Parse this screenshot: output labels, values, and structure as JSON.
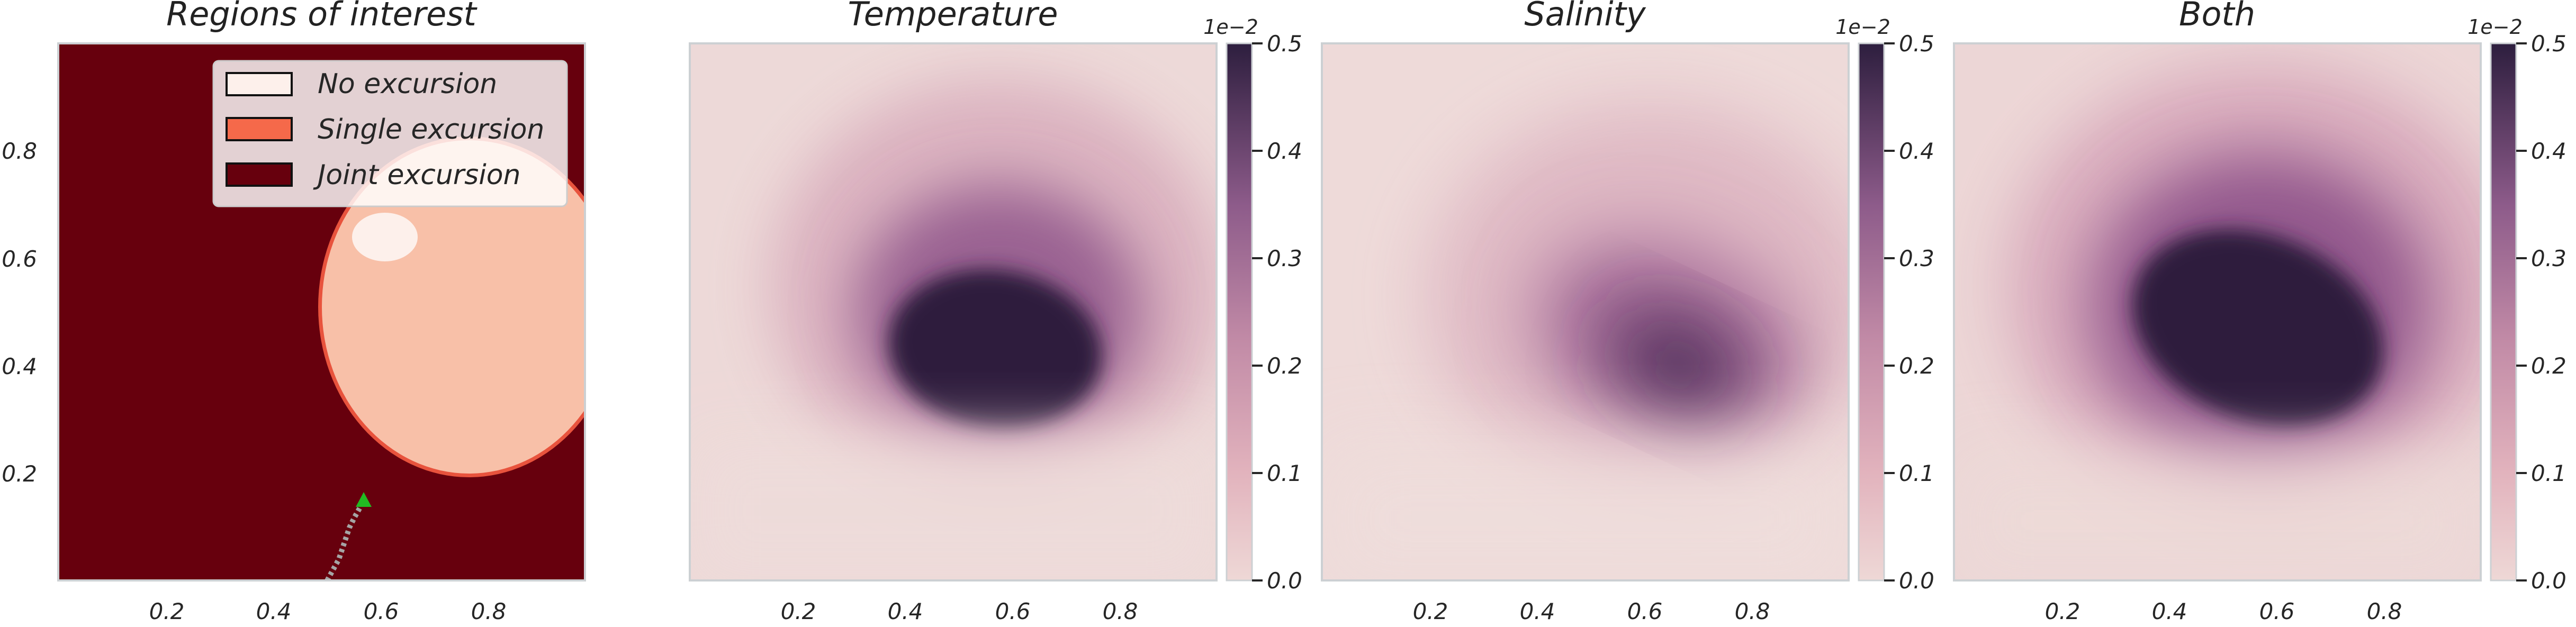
{
  "chart_data": [
    {
      "type": "heatmap",
      "title": "Regions of interest",
      "categorical": true,
      "x_ticks": [
        "0.2",
        "0.4",
        "0.6",
        "0.8"
      ],
      "y_ticks": [
        "0.2",
        "0.4",
        "0.6",
        "0.8"
      ],
      "xlim": [
        0,
        1
      ],
      "ylim": [
        0,
        1
      ],
      "grid": false,
      "legend_position": "top-right",
      "legend": [
        {
          "label": "No excursion",
          "color": "#fdf0eb"
        },
        {
          "label": "Single excursion",
          "color": "#f5694a"
        },
        {
          "label": "Joint excursion",
          "color": "#67000d"
        }
      ],
      "regions": [
        {
          "name": "Joint excursion",
          "color": "#67000d",
          "extent": "background"
        },
        {
          "name": "Single excursion",
          "color": "#f8c0a8",
          "center": [
            0.78,
            0.51
          ],
          "radius": [
            0.28,
            0.31
          ]
        },
        {
          "name": "No excursion",
          "color": "#fdf0eb",
          "center": [
            0.58,
            0.65
          ],
          "radius": [
            0.06,
            0.045
          ]
        }
      ],
      "trajectory": {
        "points": [
          [
            0.5,
            0.0
          ],
          [
            0.52,
            0.04
          ],
          [
            0.53,
            0.07
          ],
          [
            0.54,
            0.1
          ],
          [
            0.55,
            0.12
          ],
          [
            0.57,
            0.15
          ]
        ],
        "current": [
          0.57,
          0.15
        ],
        "current_color": "#22bb22",
        "path_color": "#a5a5a5"
      }
    },
    {
      "type": "heatmap",
      "title": "Temperature",
      "x_ticks": [
        "0.2",
        "0.4",
        "0.6",
        "0.8"
      ],
      "xlim": [
        0,
        1
      ],
      "ylim": [
        0,
        1
      ],
      "grid": false,
      "colorbar": {
        "min": 0.0,
        "max": 0.5,
        "ticks": [
          "0.0",
          "0.1",
          "0.2",
          "0.3",
          "0.4",
          "0.5"
        ],
        "exponent": "1e−2"
      },
      "blobs": [
        {
          "center": [
            0.58,
            0.42
          ],
          "radius": [
            0.21,
            0.17
          ],
          "peak": 0.5,
          "saturate": true
        }
      ]
    },
    {
      "type": "heatmap",
      "title": "Salinity",
      "x_ticks": [
        "0.2",
        "0.4",
        "0.6",
        "0.8"
      ],
      "xlim": [
        0,
        1
      ],
      "ylim": [
        0,
        1
      ],
      "grid": false,
      "colorbar": {
        "min": 0.0,
        "max": 0.5,
        "ticks": [
          "0.0",
          "0.1",
          "0.2",
          "0.3",
          "0.4",
          "0.5"
        ],
        "exponent": "1e−2"
      },
      "blobs": [
        {
          "center": [
            0.66,
            0.39
          ],
          "radius": [
            0.2,
            0.14
          ],
          "peak": 0.42,
          "saturate": false
        }
      ]
    },
    {
      "type": "heatmap",
      "title": "Both",
      "x_ticks": [
        "0.2",
        "0.4",
        "0.6",
        "0.8"
      ],
      "xlim": [
        0,
        1
      ],
      "ylim": [
        0,
        1
      ],
      "grid": false,
      "colorbar": {
        "min": 0.0,
        "max": 0.5,
        "ticks": [
          "0.0",
          "0.1",
          "0.2",
          "0.3",
          "0.4",
          "0.5"
        ],
        "exponent": "1e−2"
      },
      "blobs": [
        {
          "center": [
            0.58,
            0.46
          ],
          "radius": [
            0.26,
            0.22
          ],
          "peak": 0.5,
          "saturate": true
        }
      ]
    }
  ]
}
